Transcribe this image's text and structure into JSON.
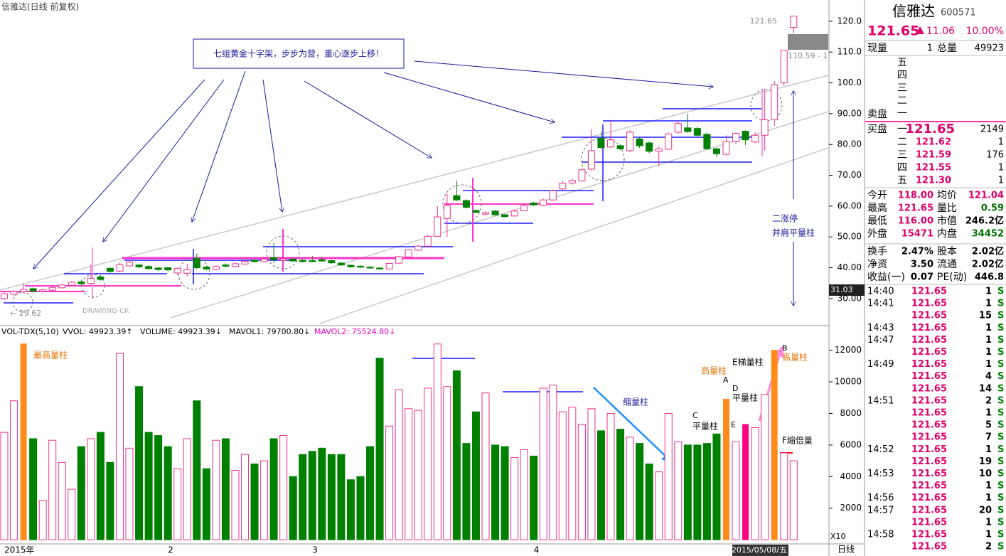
{
  "chart_data": [
    {
      "type": "candlestick",
      "title": "信雅达(日线 前复权)",
      "open": [
        30.0,
        31.4,
        32.2,
        33.2,
        32.3,
        32.7,
        33.5,
        34.3,
        35.4,
        34.9,
        37.0,
        39.8,
        38.9,
        40.6,
        40.9,
        40.4,
        39.9,
        40.0,
        38.3,
        38.2,
        43.0,
        40.2,
        39.5,
        40.9,
        40.4,
        41.2,
        42.4,
        42.0,
        43.3,
        42.4,
        42.8,
        42.4,
        42.3,
        42.6,
        42.3,
        41.5,
        40.8,
        40.5,
        40.2,
        39.9,
        39.6,
        41.5,
        43.5,
        45.7,
        47.0,
        50.2,
        56.0,
        63.4,
        61.8,
        58.6,
        57.4,
        58.4,
        57.2,
        56.8,
        58.5,
        61.0,
        60.3,
        62.0,
        65.6,
        67.5,
        68.2,
        72.0,
        82.0,
        79.2,
        79.6,
        78.0,
        81.8,
        80.5,
        77.8,
        78.5,
        84.0,
        85.4,
        85.2,
        83.3,
        78.6,
        76.8,
        81.0,
        84.3,
        80.8,
        83.0,
        88.0,
        100.0,
        118.0
      ],
      "high": [
        32.0,
        32.8,
        35.0,
        33.6,
        33.2,
        34.0,
        34.8,
        35.6,
        36.2,
        41.0,
        37.6,
        40.2,
        41.6,
        42.4,
        41.2,
        40.8,
        40.2,
        40.3,
        40.1,
        41.3,
        44.6,
        40.6,
        40.8,
        41.4,
        41.8,
        42.6,
        42.8,
        43.3,
        48.0,
        43.3,
        43.2,
        42.8,
        43.8,
        43.6,
        42.6,
        41.9,
        41.1,
        40.8,
        40.5,
        40.2,
        41.6,
        43.8,
        46.0,
        47.4,
        50.6,
        60.0,
        64.0,
        68.2,
        62.2,
        58.9,
        58.3,
        58.7,
        57.6,
        58.9,
        60.7,
        61.4,
        62.4,
        65.4,
        68.2,
        69.0,
        72.3,
        85.0,
        84.2,
        88.0,
        80.0,
        84.6,
        82.3,
        81.0,
        79.4,
        83.9,
        87.8,
        90.0,
        85.8,
        83.8,
        79.0,
        83.0,
        84.0,
        84.6,
        84.0,
        98.0,
        100.6,
        110.59,
        121.65
      ],
      "low": [
        29.6,
        31.0,
        31.8,
        32.0,
        31.9,
        32.5,
        33.2,
        34.0,
        34.4,
        34.6,
        35.8,
        38.4,
        38.6,
        40.3,
        39.8,
        39.4,
        38.9,
        38.8,
        37.6,
        37.2,
        39.6,
        39.2,
        39.2,
        40.1,
        40.1,
        41.0,
        41.6,
        41.8,
        41.6,
        42.1,
        41.9,
        41.7,
        41.8,
        41.9,
        41.3,
        40.6,
        40.0,
        39.9,
        39.6,
        39.3,
        39.4,
        41.3,
        43.3,
        45.5,
        46.8,
        50.0,
        50.0,
        61.6,
        59.2,
        57.7,
        57.0,
        56.9,
        56.2,
        56.6,
        58.3,
        60.1,
        60.0,
        61.8,
        65.2,
        67.0,
        68.0,
        71.5,
        78.6,
        78.8,
        78.2,
        77.5,
        78.9,
        77.2,
        73.0,
        78.3,
        83.5,
        83.8,
        82.6,
        78.3,
        76.0,
        76.4,
        80.0,
        79.8,
        80.4,
        78.0,
        86.0,
        99.0,
        116.0
      ],
      "close": [
        31.5,
        32.3,
        33.0,
        32.4,
        32.8,
        33.6,
        34.4,
        35.3,
        34.8,
        36.6,
        36.2,
        38.8,
        41.0,
        41.8,
        40.3,
        39.7,
        39.4,
        39.3,
        39.8,
        39.3,
        40.0,
        39.6,
        40.4,
        40.5,
        41.3,
        42.1,
        42.0,
        42.8,
        42.6,
        42.9,
        42.2,
        42.0,
        42.0,
        42.2,
        41.6,
        40.9,
        40.3,
        40.2,
        39.9,
        39.6,
        41.4,
        43.6,
        45.8,
        47.0,
        50.2,
        56.5,
        60.2,
        62.0,
        59.6,
        58.0,
        57.8,
        57.2,
        56.6,
        58.4,
        60.2,
        60.4,
        62.0,
        65.0,
        67.4,
        68.3,
        71.8,
        78.0,
        79.0,
        81.5,
        78.6,
        84.0,
        79.6,
        77.8,
        78.6,
        83.4,
        86.8,
        84.2,
        83.0,
        78.6,
        77.0,
        81.0,
        83.6,
        81.5,
        83.0,
        88.0,
        99.4,
        110.59,
        121.65
      ],
      "ylim": [
        21.9,
        126.9
      ],
      "yticks": [
        {
          "value": 30,
          "label": "30.00"
        },
        {
          "value": 40,
          "label": "40.00"
        },
        {
          "value": 50,
          "label": "50.00"
        },
        {
          "value": 60,
          "label": "60.00"
        },
        {
          "value": 70,
          "label": "70.00"
        },
        {
          "value": 80,
          "label": "80.00"
        },
        {
          "value": 90,
          "label": "90.00"
        },
        {
          "value": 100,
          "label": "100.0"
        },
        {
          "value": 110,
          "label": "110.0"
        },
        {
          "value": 120,
          "label": "120.0"
        }
      ],
      "up_color": "#e8328c",
      "down_color": "#008000",
      "annotations": {
        "note": "七组黄金十字架，步步为营，重心逐步上移！",
        "limit_up": "二涨停",
        "flat_pair": "并肩平量柱",
        "last_price": "121.65",
        "prev_label": "110.59 - 1",
        "low_label": "← 29.62",
        "watermark": "DRAWING-CK",
        "axis_marker": "31.03"
      }
    },
    {
      "type": "bar",
      "title": "VOL-TDX(5,10)",
      "legend": [
        "VVOL: 49923.39↑",
        "VOLUME: 49923.39↓",
        "MAVOL1: 79700.80↓",
        "MAVOL2: 75524.80↓"
      ],
      "categories": [
        "2015年",
        null,
        null,
        null,
        null,
        null,
        null,
        null,
        null,
        null,
        null,
        null,
        null,
        null,
        null,
        null,
        null,
        "2",
        null,
        null,
        null,
        null,
        null,
        null,
        null,
        null,
        null,
        null,
        null,
        null,
        null,
        null,
        "3",
        null,
        null,
        null,
        null,
        null,
        null,
        null,
        null,
        null,
        null,
        null,
        null,
        null,
        null,
        null,
        null,
        null,
        null,
        null,
        null,
        null,
        null,
        "4",
        null,
        null,
        null,
        null,
        null,
        null,
        null,
        null,
        null,
        null,
        null,
        null,
        null,
        null,
        null,
        null,
        null,
        null,
        null,
        null,
        null,
        null,
        null,
        null,
        null,
        null,
        "2015/05/08/五"
      ],
      "values": [
        6800,
        8800,
        12400,
        6400,
        2500,
        6300,
        4900,
        3200,
        5900,
        6400,
        6800,
        4900,
        11800,
        5800,
        9700,
        6800,
        6600,
        5900,
        4500,
        6400,
        8800,
        4500,
        6300,
        6400,
        4400,
        5400,
        4800,
        5000,
        6400,
        6600,
        4000,
        5400,
        5600,
        5800,
        5400,
        5400,
        3800,
        4000,
        5900,
        11500,
        7200,
        9500,
        8300,
        8200,
        9600,
        12400,
        9700,
        10700,
        6100,
        8100,
        9300,
        6000,
        5900,
        5200,
        5700,
        5300,
        9600,
        9800,
        8100,
        8400,
        7300,
        8300,
        6900,
        8000,
        7000,
        6500,
        6100,
        4800,
        4300,
        8000,
        6200,
        6000,
        6000,
        6100,
        6700,
        8900,
        6200,
        7300,
        7100,
        9200,
        12000,
        5500,
        5000
      ],
      "ylim": [
        -400,
        13380
      ],
      "yticks": [
        2000,
        4000,
        6000,
        8000,
        10000,
        12000
      ],
      "highlights": [
        {
          "index": 2,
          "color": "#ff8c1a"
        },
        {
          "index": 75,
          "color": "#ff8c1a"
        },
        {
          "index": 77,
          "color": "#ff0080"
        },
        {
          "index": 80,
          "color": "#ff8c1a"
        }
      ],
      "annotations": [
        "最高量柱",
        "高量柱",
        "A",
        "B",
        "高量柱",
        "C",
        "平量柱",
        "D",
        "平量柱",
        "E梯量柱",
        "E",
        "F缩倍量",
        "缩量柱"
      ],
      "scale_label": "X10",
      "period": "日线"
    }
  ],
  "quote": {
    "name": "信雅达",
    "code": "600571",
    "price": "121.65",
    "change": "11.06",
    "change_pct": "10.00%",
    "cur_label": "现量",
    "cur_vol": "1",
    "total_label": "总量",
    "total_vol": "49923",
    "sell_label": "卖盘",
    "buy_label": "买盘",
    "asks": [
      "五",
      "四",
      "三",
      "二",
      "一"
    ],
    "bids": [
      [
        "一",
        "121.65",
        "2149"
      ],
      [
        "二",
        "121.62",
        "1"
      ],
      [
        "三",
        "121.59",
        "176"
      ],
      [
        "四",
        "121.55",
        "1"
      ],
      [
        "五",
        "121.30",
        "1"
      ]
    ],
    "stats": [
      [
        "今开",
        "118.00",
        "均价",
        "121.04"
      ],
      [
        "最高",
        "121.65",
        "量比",
        "0.59"
      ],
      [
        "最低",
        "116.00",
        "市值",
        "246.2亿"
      ],
      [
        "外盘",
        "15471",
        "内盘",
        "34452"
      ],
      [
        "换手",
        "2.47%",
        "股本",
        "2.02亿"
      ],
      [
        "净资",
        "3.50",
        "流通",
        "2.02亿"
      ],
      [
        "收益(一)",
        "0.07",
        "PE(动)",
        "446.8"
      ]
    ],
    "trades": [
      [
        "14:40",
        "121.65",
        "1",
        "S"
      ],
      [
        "14:41",
        "121.65",
        "1",
        "S"
      ],
      [
        null,
        "121.65",
        "15",
        "S"
      ],
      [
        "14:43",
        "121.65",
        "1",
        "S"
      ],
      [
        "14:47",
        "121.65",
        "1",
        "S"
      ],
      [
        null,
        "121.65",
        "1",
        "S"
      ],
      [
        "14:49",
        "121.65",
        "1",
        "S"
      ],
      [
        null,
        "121.65",
        "4",
        "S"
      ],
      [
        null,
        "121.65",
        "14",
        "S"
      ],
      [
        "14:51",
        "121.65",
        "2",
        "S"
      ],
      [
        null,
        "121.65",
        "1",
        "S"
      ],
      [
        null,
        "121.65",
        "5",
        "S"
      ],
      [
        null,
        "121.65",
        "7",
        "S"
      ],
      [
        "14:52",
        "121.65",
        "1",
        "S"
      ],
      [
        null,
        "121.65",
        "19",
        "S"
      ],
      [
        "14:53",
        "121.65",
        "10",
        "S"
      ],
      [
        null,
        "121.65",
        "1",
        "S"
      ],
      [
        "14:56",
        "121.65",
        "1",
        "S"
      ],
      [
        "14:57",
        "121.65",
        "20",
        "S"
      ],
      [
        null,
        "121.65",
        "1",
        "S"
      ],
      [
        "14:58",
        "121.65",
        "1",
        "S"
      ],
      [
        null,
        "121.65",
        "2",
        "S"
      ]
    ]
  }
}
